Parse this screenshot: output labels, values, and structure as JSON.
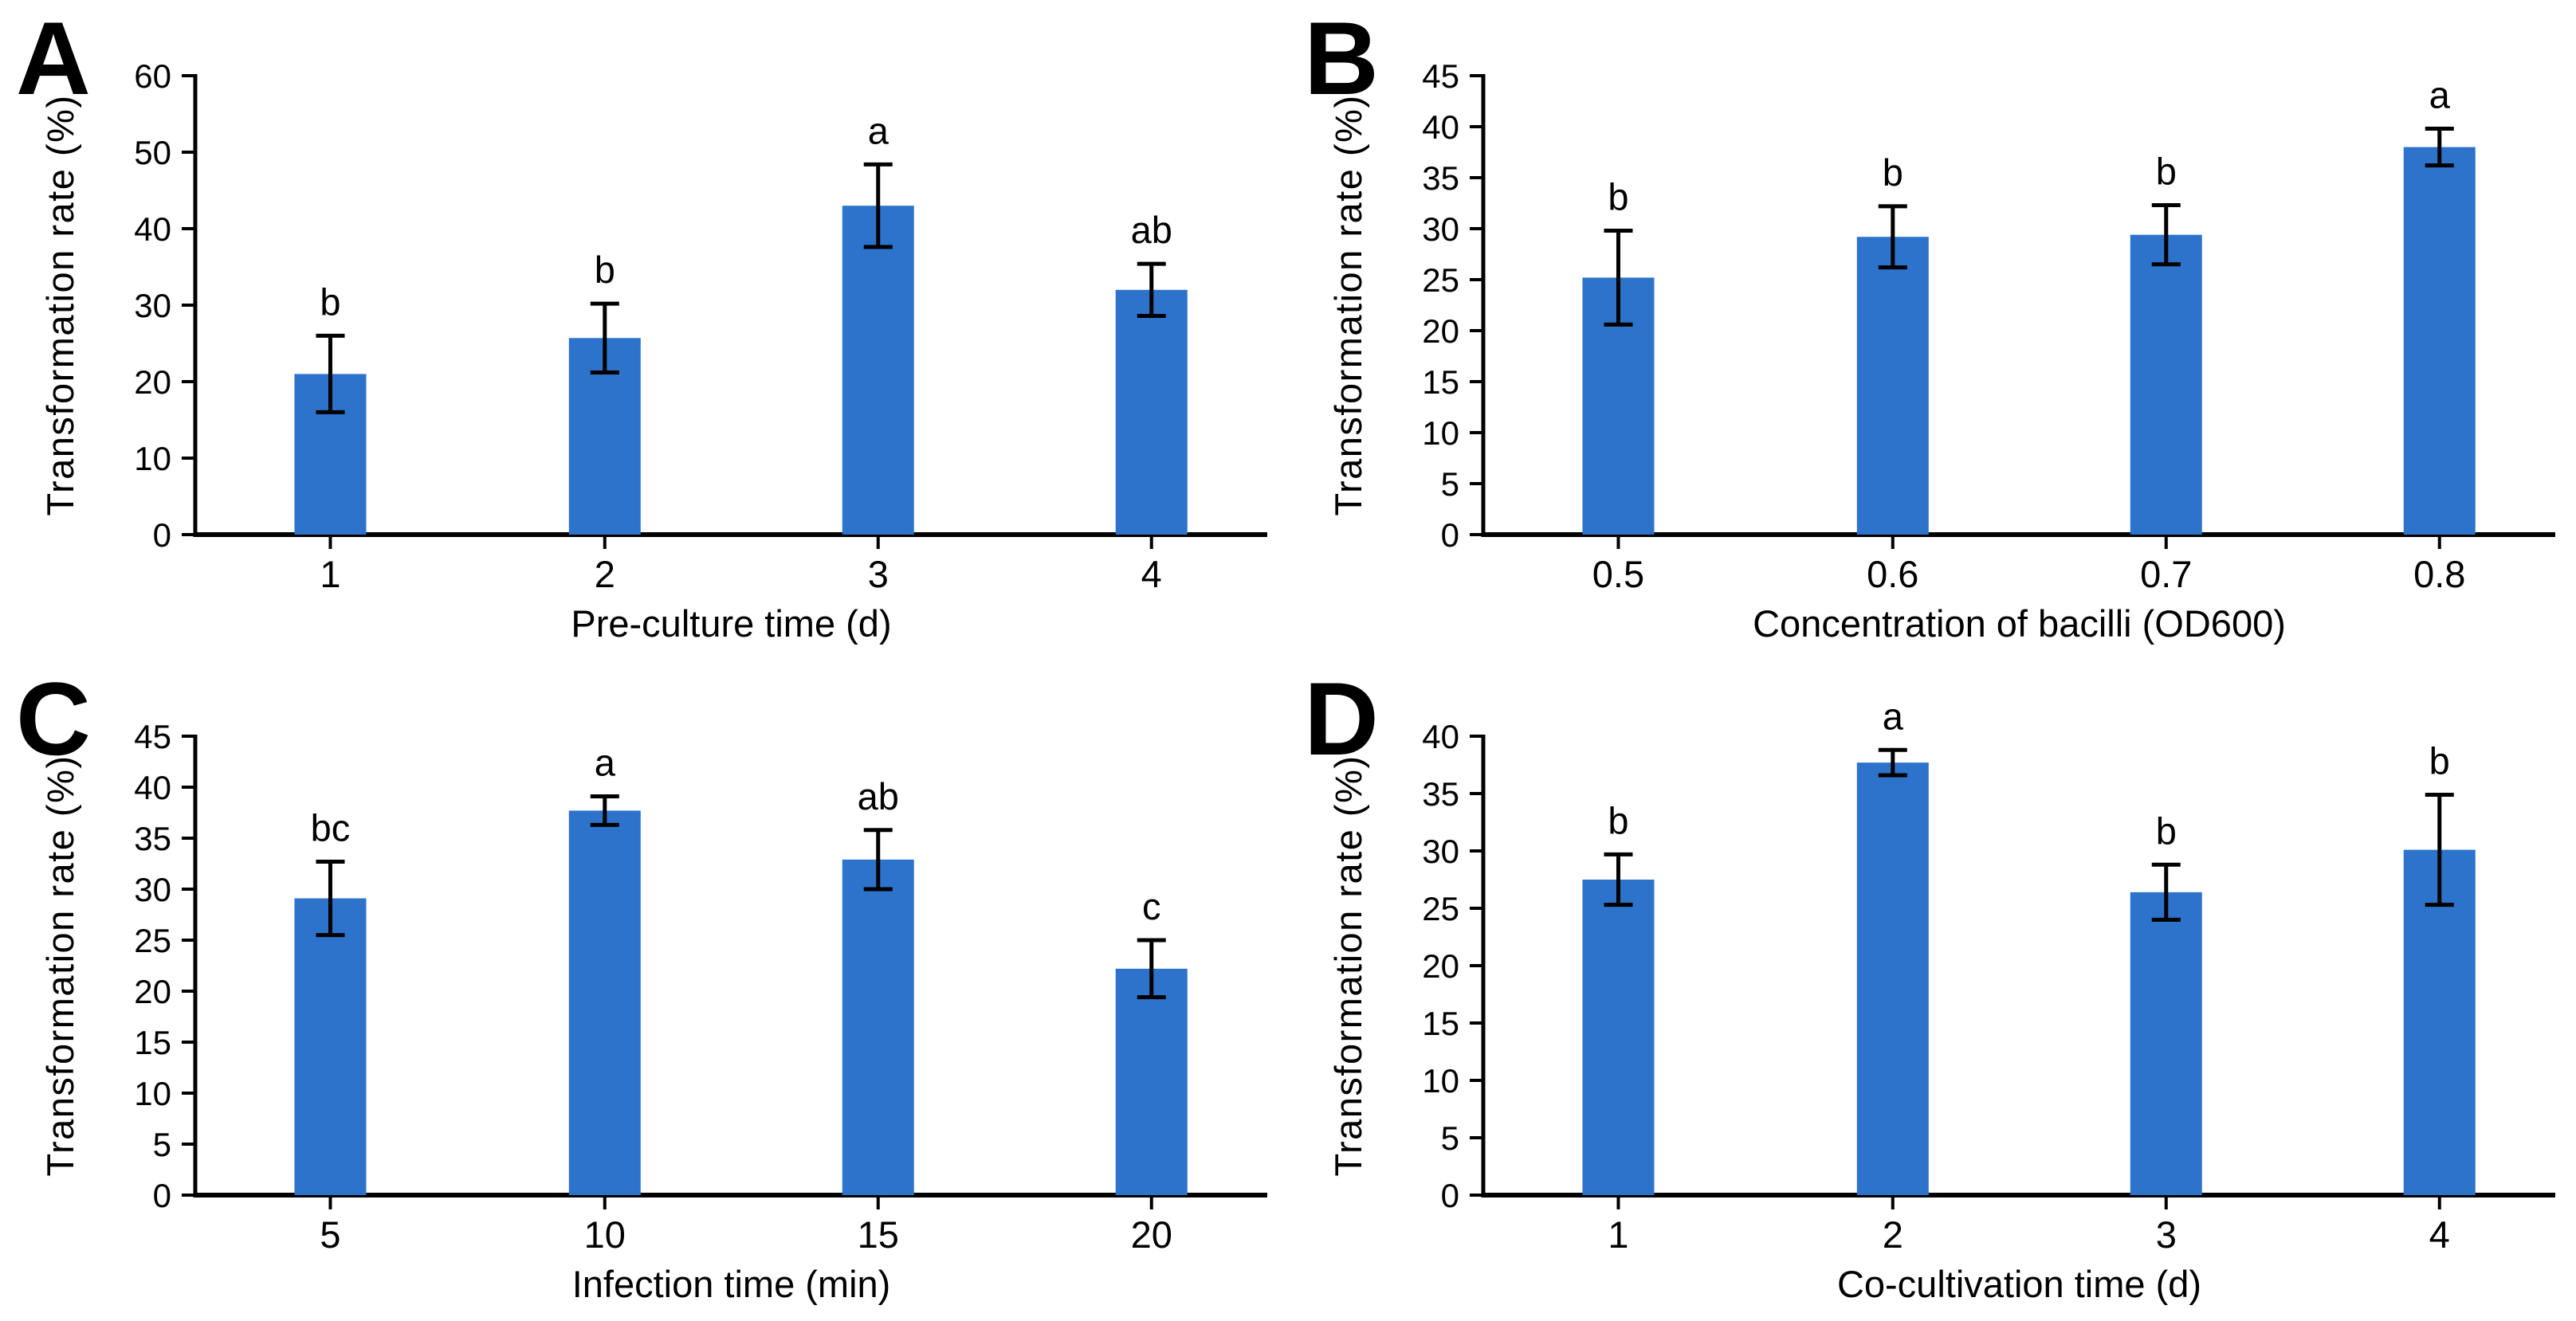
{
  "figure": {
    "background": "#ffffff",
    "bar_color": "#2d73cb",
    "axis_color": "#000000",
    "error_bar_color": "#000000",
    "text_color": "#000000"
  },
  "chart_data": [
    {
      "type": "bar",
      "panel": "A",
      "title": "",
      "xlabel": "Pre-culture time (d)",
      "ylabel": "Transformation rate (%)",
      "categories": [
        "1",
        "2",
        "3",
        "4"
      ],
      "values": [
        21.0,
        25.7,
        43.0,
        32.0
      ],
      "error_bars": [
        5.0,
        4.5,
        5.4,
        3.4
      ],
      "sig_letters": [
        "b",
        "b",
        "a",
        "ab"
      ],
      "ylim": [
        0,
        60
      ],
      "ytick_step": 10,
      "grid": false,
      "legend": "none",
      "bar_color": "#2d73cb"
    },
    {
      "type": "bar",
      "panel": "B",
      "title": "",
      "xlabel": "Concentration of bacilli (OD600)",
      "ylabel": "Transformation rate (%)",
      "categories": [
        "0.5",
        "0.6",
        "0.7",
        "0.8"
      ],
      "values": [
        25.2,
        29.2,
        29.4,
        38.0
      ],
      "error_bars": [
        4.6,
        3.0,
        2.9,
        1.8
      ],
      "sig_letters": [
        "b",
        "b",
        "b",
        "a"
      ],
      "ylim": [
        0,
        45
      ],
      "ytick_step": 5,
      "grid": false,
      "legend": "none",
      "bar_color": "#2d73cb"
    },
    {
      "type": "bar",
      "panel": "C",
      "title": "",
      "xlabel": "Infection time (min)",
      "ylabel": "Transformation rate (%)",
      "categories": [
        "5",
        "10",
        "15",
        "20"
      ],
      "values": [
        29.1,
        37.7,
        32.9,
        22.2
      ],
      "error_bars": [
        3.6,
        1.4,
        2.9,
        2.8
      ],
      "sig_letters": [
        "bc",
        "a",
        "ab",
        "c"
      ],
      "ylim": [
        0,
        45
      ],
      "ytick_step": 5,
      "grid": false,
      "legend": "none",
      "bar_color": "#2d73cb"
    },
    {
      "type": "bar",
      "panel": "D",
      "title": "",
      "xlabel": "Co-cultivation time (d)",
      "ylabel": "Transformation rate (%)",
      "categories": [
        "1",
        "2",
        "3",
        "4"
      ],
      "values": [
        27.5,
        37.7,
        26.4,
        30.1
      ],
      "error_bars": [
        2.2,
        1.1,
        2.4,
        4.8
      ],
      "sig_letters": [
        "b",
        "a",
        "b",
        "b"
      ],
      "ylim": [
        0,
        40
      ],
      "ytick_step": 5,
      "grid": false,
      "legend": "none",
      "bar_color": "#2d73cb"
    }
  ]
}
